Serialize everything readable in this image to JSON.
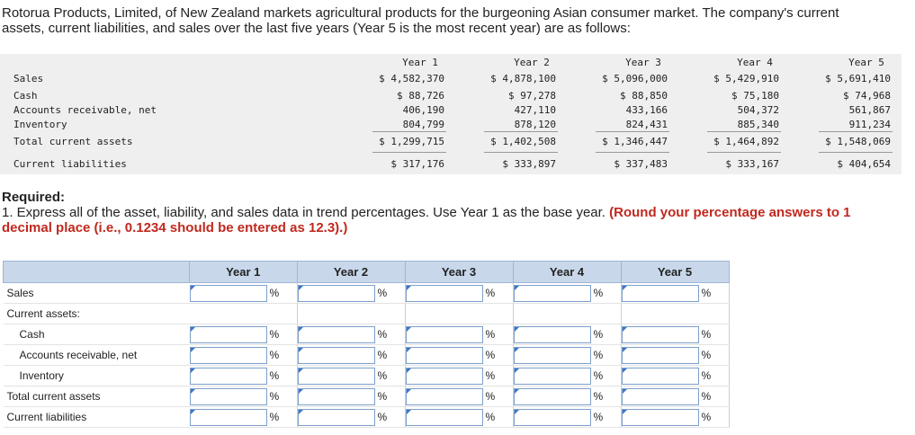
{
  "intro": "Rotorua Products, Limited, of New Zealand markets agricultural products for the burgeoning Asian consumer market. The company's current assets, current liabilities, and sales over the last five years (Year 5 is the most recent year) are as follows:",
  "data_table": {
    "columns": [
      "Year 1",
      "Year 2",
      "Year 3",
      "Year 4",
      "Year 5"
    ],
    "rows": [
      {
        "label": "Sales",
        "values": [
          "$ 4,582,370",
          "$ 4,878,100",
          "$ 5,096,000",
          "$ 5,429,910",
          "$ 5,691,410"
        ]
      },
      {
        "label": "Cash",
        "values": [
          "$ 88,726",
          "$ 97,278",
          "$ 88,850",
          "$ 75,180",
          "$ 74,968"
        ]
      },
      {
        "label": "Accounts receivable, net",
        "values": [
          "406,190",
          "427,110",
          "433,166",
          "504,372",
          "561,867"
        ]
      },
      {
        "label": "Inventory",
        "values": [
          "804,799",
          "878,120",
          "824,431",
          "885,340",
          "911,234"
        ]
      },
      {
        "label": "Total current assets",
        "values": [
          "$ 1,299,715",
          "$ 1,402,508",
          "$ 1,346,447",
          "$ 1,464,892",
          "$ 1,548,069"
        ]
      },
      {
        "label": "Current liabilities",
        "values": [
          "$ 317,176",
          "$ 333,897",
          "$ 337,483",
          "$ 333,167",
          "$ 404,654"
        ]
      }
    ]
  },
  "required": {
    "heading": "Required:",
    "text": "1. Express all of the asset, liability, and sales data in trend percentages. Use Year 1 as the base year.",
    "note": "(Round your percentage answers to 1 decimal place (i.e., 0.1234 should be entered as 12.3).)"
  },
  "answer_table": {
    "columns": [
      "Year 1",
      "Year 2",
      "Year 3",
      "Year 4",
      "Year 5"
    ],
    "rows": [
      {
        "label": "Sales",
        "units": [
          "%",
          "%",
          "%",
          "%",
          "%"
        ]
      },
      {
        "label": "Current assets:"
      },
      {
        "label": "Cash",
        "units": [
          "%",
          "%",
          "%",
          "%",
          "%"
        ]
      },
      {
        "label": "Accounts receivable, net",
        "units": [
          "%",
          "%",
          "%",
          "%",
          "%"
        ]
      },
      {
        "label": "Inventory",
        "units": [
          "%",
          "%",
          "%",
          "%",
          "%"
        ]
      },
      {
        "label": "Total current assets",
        "units": [
          "%",
          "%",
          "%",
          "%",
          "%"
        ]
      },
      {
        "label": "Current liabilities",
        "units": [
          "%",
          "%",
          "%",
          "%",
          "%"
        ]
      }
    ]
  }
}
